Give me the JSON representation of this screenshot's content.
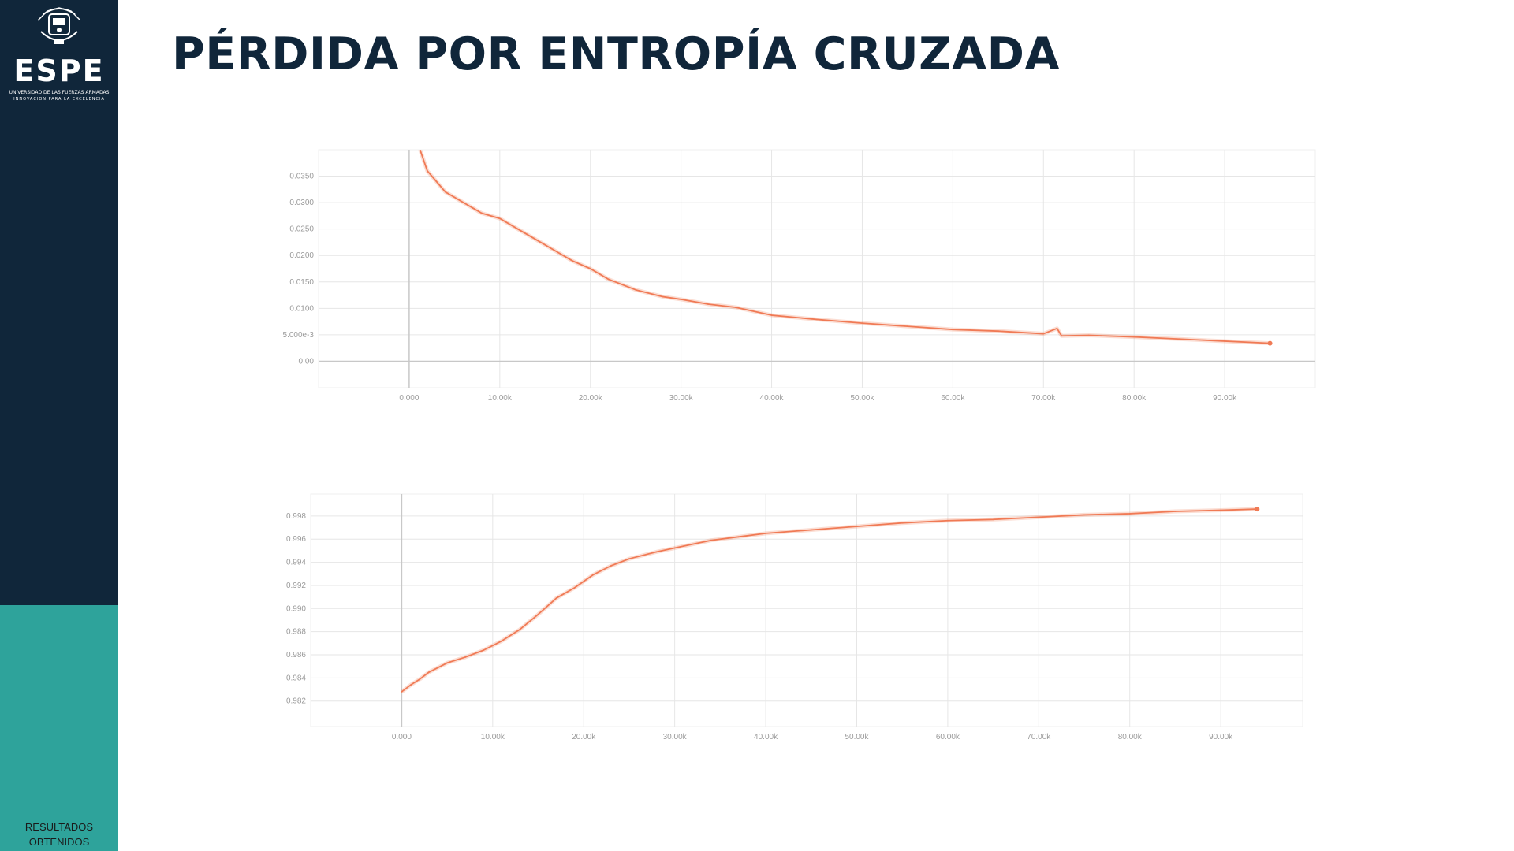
{
  "slide": {
    "title": "PÉRDIDA POR ENTROPÍA CRUZADA",
    "section_label_line1": "RESULTADOS",
    "section_label_line2": "OBTENIDOS"
  },
  "logo": {
    "name": "ESPE",
    "subtitle_line1": "UNIVERSIDAD DE LAS FUERZAS ARMADAS",
    "subtitle_line2": "INNOVACIÓN PARA LA EXCELENCIA"
  },
  "colors": {
    "sidebar_dark": "#10263a",
    "sidebar_teal": "#2ea39b",
    "line": "#f07a55",
    "grid": "#e6e6e6",
    "tick_text": "#9a9a9a"
  },
  "chart_data": [
    {
      "type": "line",
      "xlim": [
        -10000,
        100000
      ],
      "ylim": [
        -0.005,
        0.04
      ],
      "x_ticks": [
        "0.000",
        "10.00k",
        "20.00k",
        "30.00k",
        "40.00k",
        "50.00k",
        "60.00k",
        "70.00k",
        "80.00k",
        "90.00k"
      ],
      "x_tick_values": [
        0,
        10000,
        20000,
        30000,
        40000,
        50000,
        60000,
        70000,
        80000,
        90000
      ],
      "y_ticks": [
        "0.0350",
        "0.0300",
        "0.0250",
        "0.0200",
        "0.0150",
        "0.0100",
        "5.000e-3",
        "0.00"
      ],
      "y_tick_values": [
        0.035,
        0.03,
        0.025,
        0.02,
        0.015,
        0.01,
        0.005,
        0
      ],
      "grid": true,
      "series": [
        {
          "x": [
            1200,
            2000,
            3000,
            4000,
            5000,
            6000,
            7000,
            8000,
            10000,
            12000,
            14000,
            16000,
            18000,
            20000,
            22000,
            25000,
            28000,
            30000,
            33000,
            36000,
            40000,
            45000,
            50000,
            55000,
            60000,
            65000,
            70000,
            71500,
            72000,
            75000,
            80000,
            85000,
            90000,
            95000
          ],
          "y": [
            0.04,
            0.036,
            0.034,
            0.032,
            0.031,
            0.03,
            0.029,
            0.028,
            0.027,
            0.025,
            0.023,
            0.021,
            0.019,
            0.0175,
            0.0155,
            0.0135,
            0.0122,
            0.0117,
            0.0108,
            0.0102,
            0.0087,
            0.0079,
            0.0072,
            0.0066,
            0.006,
            0.0057,
            0.0052,
            0.0062,
            0.0048,
            0.0049,
            0.0046,
            0.0042,
            0.0038,
            0.0034
          ]
        }
      ]
    },
    {
      "type": "line",
      "xlim": [
        -10000,
        99000
      ],
      "ylim": [
        0.9798,
        0.9999
      ],
      "x_ticks": [
        "0.000",
        "10.00k",
        "20.00k",
        "30.00k",
        "40.00k",
        "50.00k",
        "60.00k",
        "70.00k",
        "80.00k",
        "90.00k"
      ],
      "x_tick_values": [
        0,
        10000,
        20000,
        30000,
        40000,
        50000,
        60000,
        70000,
        80000,
        90000
      ],
      "y_ticks": [
        "0.998",
        "0.996",
        "0.994",
        "0.992",
        "0.990",
        "0.988",
        "0.986",
        "0.984",
        "0.982"
      ],
      "y_tick_values": [
        0.998,
        0.996,
        0.994,
        0.992,
        0.99,
        0.988,
        0.986,
        0.984,
        0.982
      ],
      "grid": true,
      "series": [
        {
          "x": [
            0,
            1000,
            2000,
            3000,
            5000,
            7000,
            9000,
            11000,
            13000,
            15000,
            17000,
            19000,
            21000,
            23000,
            25000,
            28000,
            31000,
            34000,
            37000,
            40000,
            45000,
            50000,
            55000,
            60000,
            65000,
            70000,
            75000,
            80000,
            85000,
            90000,
            94000
          ],
          "y": [
            0.9828,
            0.9834,
            0.9839,
            0.9845,
            0.9853,
            0.9858,
            0.9864,
            0.9872,
            0.9882,
            0.9895,
            0.9909,
            0.9918,
            0.9929,
            0.9937,
            0.9943,
            0.9949,
            0.9954,
            0.9959,
            0.9962,
            0.9965,
            0.9968,
            0.9971,
            0.9974,
            0.9976,
            0.9977,
            0.9979,
            0.9981,
            0.9982,
            0.9984,
            0.9985,
            0.9986
          ]
        }
      ]
    }
  ]
}
